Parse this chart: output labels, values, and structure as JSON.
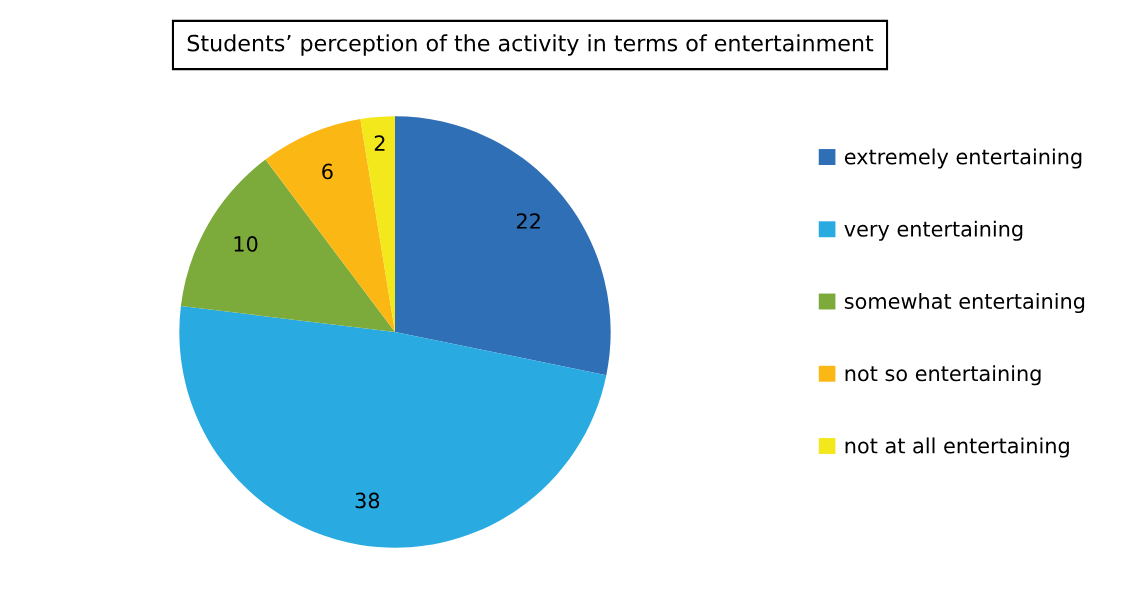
{
  "chart_data": {
    "type": "pie",
    "title": "Students’ perception of the activity in terms of entertainment",
    "categories": [
      "extremely entertaining",
      "very entertaining",
      "somewhat entertaining",
      "not so entertaining",
      "not at all entertaining"
    ],
    "values": [
      22,
      38,
      10,
      6,
      2
    ],
    "colors": [
      "#2f6fb5",
      "#29abe2",
      "#7cab3c",
      "#fbb814",
      "#f3e81c"
    ],
    "data_labels": true,
    "legend": "right"
  }
}
